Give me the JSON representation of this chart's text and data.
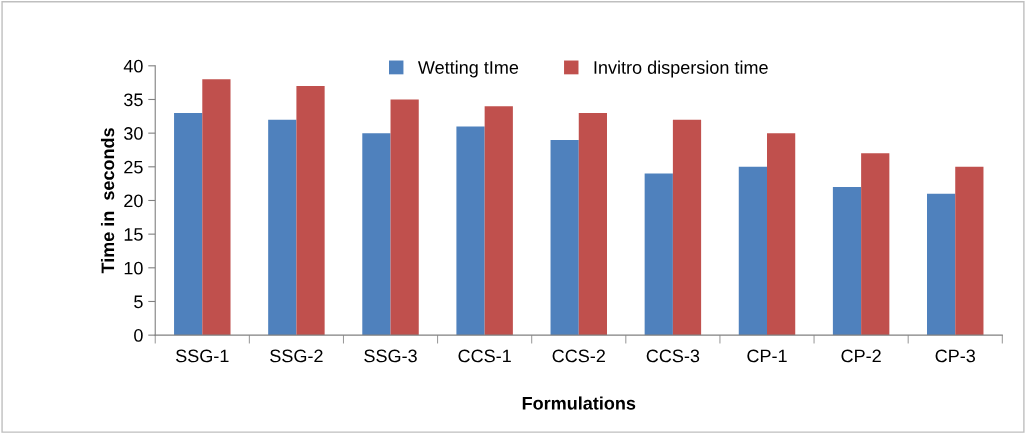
{
  "chart_data": {
    "type": "bar",
    "xlabel": "Formulations",
    "ylabel": "Time in  seconds",
    "categories": [
      "SSG-1",
      "SSG-2",
      "SSG-3",
      "CCS-1",
      "CCS-2",
      "CCS-3",
      "CP-1",
      "CP-2",
      "CP-3"
    ],
    "series": [
      {
        "name": "Wetting tIme",
        "color": "#4f81bd",
        "values": [
          33,
          32,
          30,
          31,
          29,
          24,
          25,
          22,
          21
        ]
      },
      {
        "name": "Invitro dispersion time",
        "color": "#c0504d",
        "values": [
          38,
          37,
          35,
          34,
          33,
          32,
          30,
          27,
          25
        ]
      }
    ],
    "ylim": [
      0,
      40
    ],
    "yticks": [
      0,
      5,
      10,
      15,
      20,
      25,
      30,
      35,
      40
    ],
    "grid": false,
    "legend": "top"
  }
}
